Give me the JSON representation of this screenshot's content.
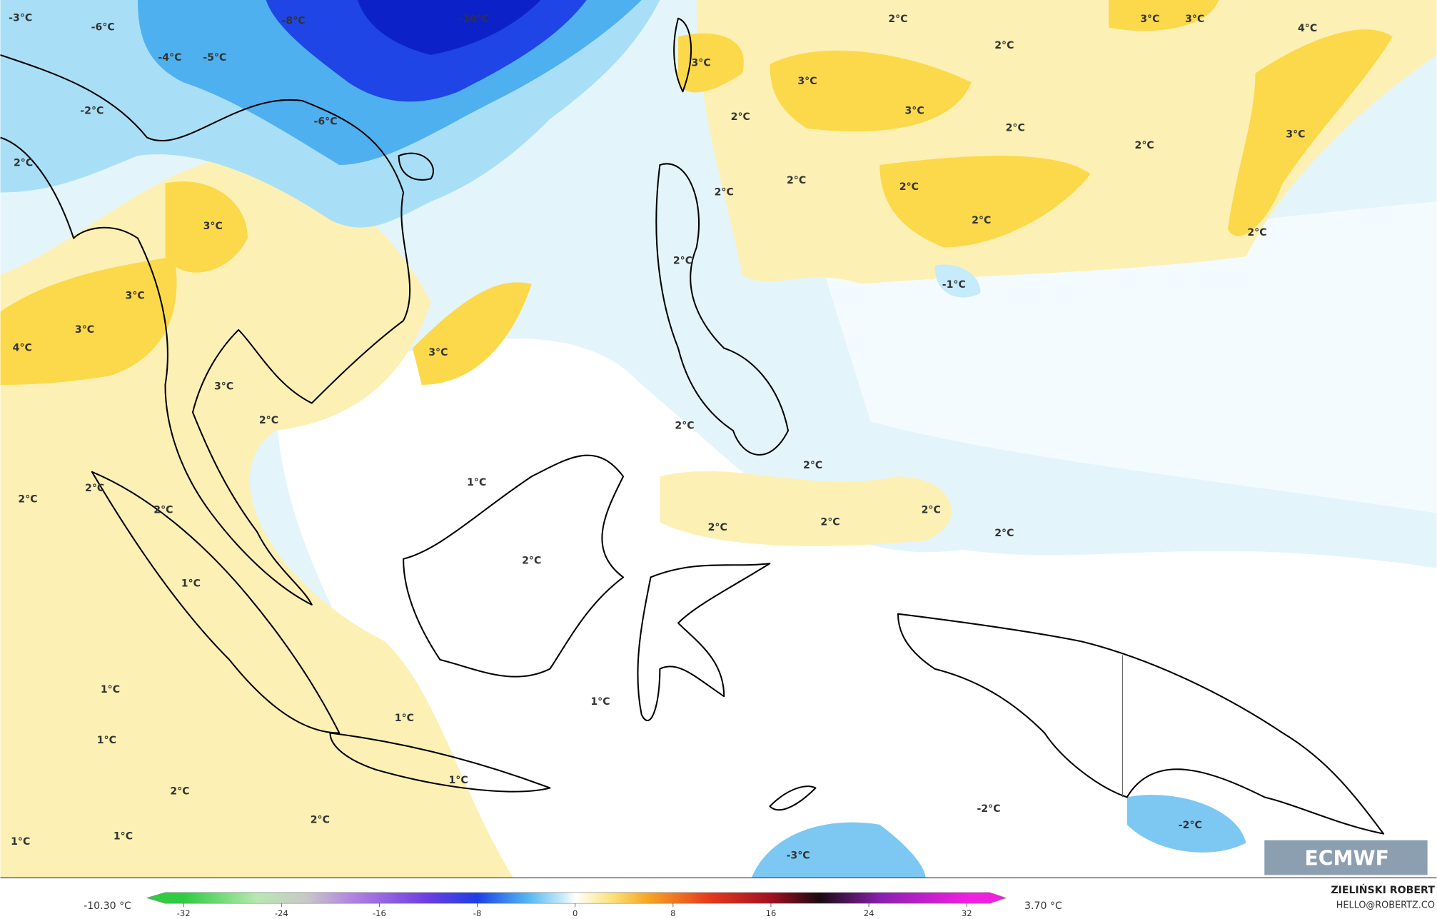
{
  "map_labels": [
    "-3°C",
    "-6°C",
    "-8°C",
    "-10°C",
    "-4°C",
    "-5°C",
    "-2°C",
    "-6°C",
    "2°C",
    "3°C",
    "3°C",
    "3°C",
    "4°C",
    "3°C",
    "2°C",
    "3°C",
    "2°C",
    "2°C",
    "2°C",
    "1°C",
    "2°C",
    "1°C",
    "1°C",
    "1°C",
    "1°C",
    "2°C",
    "1°C",
    "2°C",
    "1°C",
    "1°C",
    "1°C",
    "2°C",
    "2°C",
    "2°C",
    "2°C",
    "2°C",
    "2°C",
    "2°C",
    "2°C",
    "2°C",
    "2°C",
    "3°C",
    "3°C",
    "2°C",
    "2°C",
    "3°C",
    "2°C",
    "2°C",
    "2°C",
    "2°C",
    "3°C",
    "3°C",
    "4°C",
    "3°C",
    "2°C",
    "-1°C",
    "-2°C",
    "-2°C",
    "-3°C"
  ],
  "legend": {
    "min_label": "-10.30 °C",
    "max_label": "3.70 °C",
    "ticks": [
      -32,
      -24,
      -16,
      -8,
      0,
      8,
      16,
      24,
      32
    ],
    "stops": [
      {
        "value": -32,
        "color": "#2ecc40"
      },
      {
        "value": -26,
        "color": "#b8e8b0"
      },
      {
        "value": -22,
        "color": "#c8c8c8"
      },
      {
        "value": -18,
        "color": "#b080e0"
      },
      {
        "value": -12,
        "color": "#6a3de0"
      },
      {
        "value": -8,
        "color": "#1e3ee8"
      },
      {
        "value": -4,
        "color": "#50b4f0"
      },
      {
        "value": -1,
        "color": "#c8ecfa"
      },
      {
        "value": 0,
        "color": "#ffffff"
      },
      {
        "value": 3,
        "color": "#fbe27a"
      },
      {
        "value": 6,
        "color": "#f5a623"
      },
      {
        "value": 11,
        "color": "#e53a1e"
      },
      {
        "value": 16,
        "color": "#a01020"
      },
      {
        "value": 20,
        "color": "#1a0a10"
      },
      {
        "value": 25,
        "color": "#8a20b0"
      },
      {
        "value": 32,
        "color": "#f020e0"
      }
    ]
  },
  "credit": {
    "author": "ZIELIŃSKI ROBERT",
    "contact": "HELLO@ROBERTZ.CO",
    "logo": "ECMWF"
  }
}
